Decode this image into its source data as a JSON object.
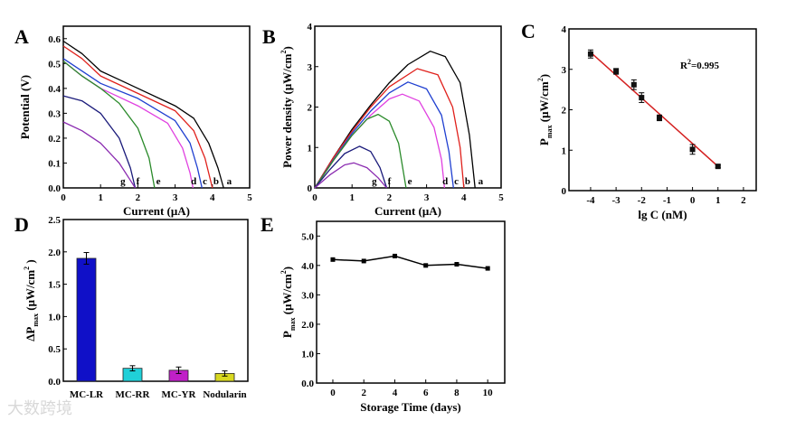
{
  "chart_data": [
    {
      "panel": "A",
      "type": "line",
      "xlabel": "Current (μA)",
      "ylabel": "Potential (V)",
      "xlim": [
        0,
        5
      ],
      "ylim": [
        0,
        0.65
      ],
      "xticks": [
        0,
        1,
        2,
        3,
        4,
        5
      ],
      "yticks": [
        0.0,
        0.1,
        0.2,
        0.3,
        0.4,
        0.5,
        0.6
      ],
      "ytick_decimals": 1,
      "series": [
        {
          "name": "a",
          "color": "#000000",
          "points": [
            [
              0,
              0.59
            ],
            [
              0.5,
              0.54
            ],
            [
              1,
              0.47
            ],
            [
              2,
              0.4
            ],
            [
              3,
              0.33
            ],
            [
              3.5,
              0.28
            ],
            [
              3.9,
              0.18
            ],
            [
              4.15,
              0.08
            ],
            [
              4.3,
              0
            ]
          ]
        },
        {
          "name": "b",
          "color": "#e0201b",
          "points": [
            [
              0,
              0.57
            ],
            [
              0.5,
              0.52
            ],
            [
              1,
              0.45
            ],
            [
              2,
              0.38
            ],
            [
              3,
              0.31
            ],
            [
              3.5,
              0.23
            ],
            [
              3.8,
              0.12
            ],
            [
              4.0,
              0
            ]
          ]
        },
        {
          "name": "c",
          "color": "#1f3fd0",
          "points": [
            [
              0,
              0.52
            ],
            [
              0.5,
              0.47
            ],
            [
              1,
              0.42
            ],
            [
              2,
              0.36
            ],
            [
              3,
              0.27
            ],
            [
              3.4,
              0.18
            ],
            [
              3.6,
              0.08
            ],
            [
              3.72,
              0
            ]
          ]
        },
        {
          "name": "d",
          "color": "#e040e0",
          "points": [
            [
              0,
              0.51
            ],
            [
              0.5,
              0.45
            ],
            [
              1,
              0.4
            ],
            [
              2,
              0.33
            ],
            [
              2.8,
              0.26
            ],
            [
              3.2,
              0.16
            ],
            [
              3.4,
              0.06
            ],
            [
              3.48,
              0
            ]
          ]
        },
        {
          "name": "e",
          "color": "#2a8a2a",
          "points": [
            [
              0,
              0.51
            ],
            [
              0.5,
              0.45
            ],
            [
              1,
              0.4
            ],
            [
              1.5,
              0.34
            ],
            [
              2,
              0.24
            ],
            [
              2.3,
              0.12
            ],
            [
              2.45,
              0
            ]
          ]
        },
        {
          "name": "f",
          "color": "#1a1a7a",
          "points": [
            [
              0,
              0.37
            ],
            [
              0.5,
              0.35
            ],
            [
              1,
              0.3
            ],
            [
              1.5,
              0.2
            ],
            [
              1.8,
              0.08
            ],
            [
              1.93,
              0
            ]
          ]
        },
        {
          "name": "g",
          "color": "#8a2ab0",
          "points": [
            [
              0,
              0.265
            ],
            [
              0.5,
              0.23
            ],
            [
              1,
              0.18
            ],
            [
              1.5,
              0.1
            ],
            [
              1.8,
              0.03
            ],
            [
              1.93,
              0
            ]
          ]
        }
      ],
      "curve_labels": [
        {
          "text": "a",
          "x": 4.45
        },
        {
          "text": "b",
          "x": 4.1
        },
        {
          "text": "c",
          "x": 3.8
        },
        {
          "text": "d",
          "x": 3.5
        },
        {
          "text": "e",
          "x": 2.55
        },
        {
          "text": "f",
          "x": 2.0
        },
        {
          "text": "g",
          "x": 1.6
        }
      ]
    },
    {
      "panel": "B",
      "type": "line",
      "xlabel": "Current (μA)",
      "ylabel": "Power density (μW/cm",
      "ylabel_sup": "2",
      "ylabel_end": ")",
      "xlim": [
        0,
        5
      ],
      "ylim": [
        0,
        4
      ],
      "xticks": [
        0,
        1,
        2,
        3,
        4,
        5
      ],
      "yticks": [
        0,
        1,
        2,
        3,
        4
      ],
      "ytick_decimals": 0,
      "series": [
        {
          "name": "a",
          "color": "#000000",
          "points": [
            [
              0,
              0
            ],
            [
              0.5,
              0.75
            ],
            [
              1,
              1.45
            ],
            [
              1.5,
              2.05
            ],
            [
              2,
              2.6
            ],
            [
              2.5,
              3.05
            ],
            [
              3.1,
              3.38
            ],
            [
              3.5,
              3.25
            ],
            [
              3.9,
              2.6
            ],
            [
              4.15,
              1.3
            ],
            [
              4.3,
              0
            ]
          ]
        },
        {
          "name": "b",
          "color": "#e0201b",
          "points": [
            [
              0,
              0
            ],
            [
              0.5,
              0.75
            ],
            [
              1,
              1.4
            ],
            [
              1.5,
              2.0
            ],
            [
              2,
              2.5
            ],
            [
              2.75,
              2.95
            ],
            [
              3.3,
              2.8
            ],
            [
              3.7,
              2.0
            ],
            [
              3.9,
              1.0
            ],
            [
              4.0,
              0
            ]
          ]
        },
        {
          "name": "c",
          "color": "#1f3fd0",
          "points": [
            [
              0,
              0
            ],
            [
              0.5,
              0.7
            ],
            [
              1,
              1.35
            ],
            [
              1.5,
              1.9
            ],
            [
              2,
              2.35
            ],
            [
              2.5,
              2.62
            ],
            [
              3,
              2.45
            ],
            [
              3.4,
              1.8
            ],
            [
              3.6,
              0.9
            ],
            [
              3.72,
              0
            ]
          ]
        },
        {
          "name": "d",
          "color": "#e040e0",
          "points": [
            [
              0,
              0
            ],
            [
              0.5,
              0.68
            ],
            [
              1,
              1.3
            ],
            [
              1.5,
              1.8
            ],
            [
              2,
              2.2
            ],
            [
              2.35,
              2.32
            ],
            [
              2.8,
              2.15
            ],
            [
              3.2,
              1.5
            ],
            [
              3.4,
              0.7
            ],
            [
              3.48,
              0
            ]
          ]
        },
        {
          "name": "e",
          "color": "#2a8a2a",
          "points": [
            [
              0,
              0
            ],
            [
              0.5,
              0.68
            ],
            [
              1,
              1.3
            ],
            [
              1.4,
              1.7
            ],
            [
              1.7,
              1.82
            ],
            [
              2,
              1.65
            ],
            [
              2.25,
              1.1
            ],
            [
              2.45,
              0
            ]
          ]
        },
        {
          "name": "f",
          "color": "#1a1a7a",
          "points": [
            [
              0,
              0
            ],
            [
              0.4,
              0.45
            ],
            [
              0.8,
              0.85
            ],
            [
              1.2,
              1.03
            ],
            [
              1.5,
              0.9
            ],
            [
              1.75,
              0.5
            ],
            [
              1.93,
              0
            ]
          ]
        },
        {
          "name": "g",
          "color": "#8a2ab0",
          "points": [
            [
              0,
              0
            ],
            [
              0.4,
              0.32
            ],
            [
              0.8,
              0.57
            ],
            [
              1.05,
              0.62
            ],
            [
              1.4,
              0.5
            ],
            [
              1.7,
              0.25
            ],
            [
              1.93,
              0
            ]
          ]
        }
      ],
      "curve_labels": [
        {
          "text": "a",
          "x": 4.45
        },
        {
          "text": "b",
          "x": 4.1
        },
        {
          "text": "c",
          "x": 3.8
        },
        {
          "text": "d",
          "x": 3.5
        },
        {
          "text": "e",
          "x": 2.55
        },
        {
          "text": "f",
          "x": 2.0
        },
        {
          "text": "g",
          "x": 1.6
        }
      ]
    },
    {
      "panel": "C",
      "type": "scatter",
      "xlabel": "lg C (nM)",
      "ylabel": "P",
      "ylabel_sub": "max",
      "ylabel_rest": " (μW/cm",
      "ylabel_sup": "2",
      "ylabel_end": ")",
      "xlim": [
        -4.85,
        2.5
      ],
      "ylim": [
        0,
        4
      ],
      "xticks": [
        -4,
        -3,
        -2,
        -1,
        0,
        1,
        2
      ],
      "yticks": [
        0,
        1,
        2,
        3,
        4
      ],
      "ytick_decimals": 0,
      "points": [
        [
          -4,
          3.38,
          0.1
        ],
        [
          -3,
          2.95,
          0.07
        ],
        [
          -2.3,
          2.62,
          0.12
        ],
        [
          -2,
          2.3,
          0.12
        ],
        [
          -1.3,
          1.8,
          0.07
        ],
        [
          0,
          1.02,
          0.12
        ],
        [
          1,
          0.6,
          0.03
        ]
      ],
      "fit": {
        "color": "#d42020",
        "from": [
          -4,
          3.42
        ],
        "to": [
          1,
          0.6
        ]
      },
      "annotation": {
        "text": "R",
        "sup": "2",
        "rest": "=0.995"
      }
    },
    {
      "panel": "D",
      "type": "bar",
      "ylabel": "ΔP",
      "ylabel_sub": "max",
      "ylabel_rest": " (μW/cm",
      "ylabel_sup": "2",
      "ylabel_end": " )",
      "ylim": [
        0,
        2.5
      ],
      "yticks": [
        0.0,
        0.5,
        1.0,
        1.5,
        2.0,
        2.5
      ],
      "ytick_decimals": 1,
      "categories": [
        "MC-LR",
        "MC-RR",
        "MC-YR",
        "Nodularin"
      ],
      "values": [
        1.9,
        0.2,
        0.17,
        0.12
      ],
      "errors": [
        0.09,
        0.04,
        0.05,
        0.04
      ],
      "colors": [
        "#1010c8",
        "#20d0d8",
        "#c020c8",
        "#d8d820"
      ]
    },
    {
      "panel": "E",
      "type": "line",
      "xlabel": "Storage Time (days)",
      "ylabel": "P",
      "ylabel_sub": "max",
      "ylabel_rest": " (μW/cm",
      "ylabel_sup": "2",
      "ylabel_end": ")",
      "xlim": [
        -1.05,
        11.1
      ],
      "ylim": [
        0,
        5.5
      ],
      "xticks": [
        0,
        2,
        4,
        6,
        8,
        10
      ],
      "yticks": [
        0.0,
        1.0,
        2.0,
        3.0,
        4.0,
        5.0
      ],
      "ytick_decimals": 1,
      "x": [
        0,
        2,
        4,
        6,
        8,
        10
      ],
      "y": [
        4.2,
        4.15,
        4.32,
        4.0,
        4.04,
        3.9
      ]
    }
  ],
  "panel_letters": [
    "A",
    "B",
    "C",
    "D",
    "E"
  ],
  "watermark": "大数跨境"
}
